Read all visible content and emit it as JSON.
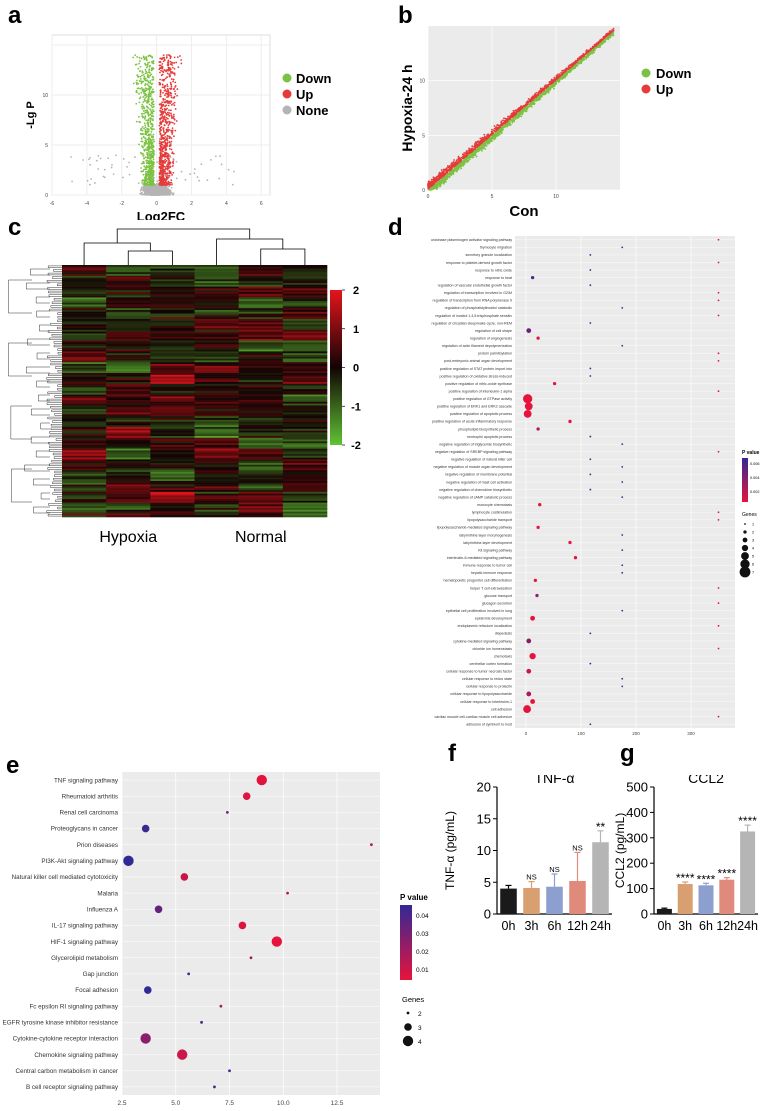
{
  "panels": {
    "a": "a",
    "b": "b",
    "c": "c",
    "d": "d",
    "e": "e",
    "f": "f",
    "g": "g"
  },
  "colors": {
    "down": "#7cc242",
    "up": "#e53b3b",
    "none": "#b4b4b4",
    "heat_low": "#5fc434",
    "heat_mid": "#120404",
    "heat_high": "#e4141c",
    "bar_0h": "#1a1a1a",
    "bar_3h": "#d8a070",
    "bar_6h": "#8d9fcf",
    "bar_12h": "#e08a7c",
    "bar_24h": "#b5b5b5",
    "grid_bg": "#ebebeb"
  },
  "chart_data": [
    {
      "id": "a",
      "type": "scatter",
      "title": "",
      "xlabel": "Log2FC",
      "ylabel": "-Lg P",
      "xlim": [
        -6,
        6.5
      ],
      "ylim": [
        0,
        16
      ],
      "xticks": [
        "-6",
        "-4",
        "-2",
        "0",
        "2",
        "4",
        "6"
      ],
      "yticks": [
        "0",
        "5",
        "10"
      ],
      "legend": [
        "Down",
        "Up",
        "None"
      ],
      "legend_position": "right"
    },
    {
      "id": "b",
      "type": "scatter",
      "title": "",
      "xlabel": "Con",
      "ylabel": "Hypoxia-24 h",
      "xlim": [
        0,
        15
      ],
      "ylim": [
        0,
        15
      ],
      "xticks": [
        "0",
        "5",
        "10"
      ],
      "yticks": [
        "0",
        "5",
        "10"
      ],
      "legend": [
        "Down",
        "Up"
      ],
      "legend_position": "right"
    },
    {
      "id": "c",
      "type": "heatmap",
      "groups": [
        "Hypoxia",
        "Normal"
      ],
      "columns": 6,
      "colorbar_ticks": [
        "2",
        "1",
        "0",
        "-1",
        "-2"
      ],
      "scale": [
        -2,
        2
      ]
    },
    {
      "id": "d",
      "type": "scatter",
      "subtype": "dotplot",
      "xticks": [
        "0",
        "100",
        "200",
        "300"
      ],
      "xlim": [
        -20,
        380
      ],
      "legend_pvalue_title": "P value",
      "legend_pvalue_ticks": [
        "0.006",
        "0.004",
        "0.002"
      ],
      "legend_genes_title": "Genes",
      "legend_genes_ticks": [
        "1",
        "2",
        "3",
        "4",
        "5",
        "6",
        "7"
      ],
      "terms": [
        {
          "label": "urokinase plasminogen activator signaling pathway",
          "x": 350,
          "genes": 1,
          "p": 0.001
        },
        {
          "label": "thymocyte migration",
          "x": 175,
          "genes": 1,
          "p": 0.006
        },
        {
          "label": "secretory granule localization",
          "x": 117,
          "genes": 1,
          "p": 0.006
        },
        {
          "label": "response to platelet-derived growth factor",
          "x": 350,
          "genes": 1,
          "p": 0.001
        },
        {
          "label": "response to nitric oxide",
          "x": 117,
          "genes": 1,
          "p": 0.006
        },
        {
          "label": "response to heat",
          "x": 12,
          "genes": 2,
          "p": 0.006
        },
        {
          "label": "regulation of vascular endothelial growth factor",
          "x": 117,
          "genes": 1,
          "p": 0.006
        },
        {
          "label": "regulation of transcription involved in G2/M",
          "x": 350,
          "genes": 1,
          "p": 0.001
        },
        {
          "label": "regulation of transcription from RNA polymerase II",
          "x": 350,
          "genes": 1,
          "p": 0.001
        },
        {
          "label": "regulation of phosphatidylinositol catabolic",
          "x": 175,
          "genes": 1,
          "p": 0.006
        },
        {
          "label": "regulation of inositol 1,4,5-trisphosphate sensitiv",
          "x": 350,
          "genes": 1,
          "p": 0.001
        },
        {
          "label": "regulation of circadian sleep/wake cycle, non-REM",
          "x": 117,
          "genes": 1,
          "p": 0.006
        },
        {
          "label": "regulation of cell shape",
          "x": 5,
          "genes": 3,
          "p": 0.005
        },
        {
          "label": "regulation of angiogenesis",
          "x": 22,
          "genes": 2,
          "p": 0.001
        },
        {
          "label": "regulation of actin filament depolymerization",
          "x": 175,
          "genes": 1,
          "p": 0.006
        },
        {
          "label": "protein palmitoylation",
          "x": 350,
          "genes": 1,
          "p": 0.001
        },
        {
          "label": "post-embryonic animal organ development",
          "x": 350,
          "genes": 1,
          "p": 0.001
        },
        {
          "label": "positive regulation of STAT protein import into",
          "x": 117,
          "genes": 1,
          "p": 0.006
        },
        {
          "label": "positive regulation of oxidative stress-induced",
          "x": 117,
          "genes": 1,
          "p": 0.006
        },
        {
          "label": "positive regulation of nitric-oxide synthase",
          "x": 52,
          "genes": 2,
          "p": 0.001
        },
        {
          "label": "positive regulation of interleukin-1 alpha",
          "x": 350,
          "genes": 1,
          "p": 0.001
        },
        {
          "label": "positive regulation of GTPase activity",
          "x": 3,
          "genes": 6,
          "p": 0.001
        },
        {
          "label": "positive regulation of ERK1 and ERK2 cascade",
          "x": 5,
          "genes": 5,
          "p": 0.001
        },
        {
          "label": "positive regulation of apoptotic process",
          "x": 3,
          "genes": 5,
          "p": 0.001
        },
        {
          "label": "positive regulation of acute inflammatory response",
          "x": 80,
          "genes": 2,
          "p": 0.001
        },
        {
          "label": "phospholipid biosynthetic process",
          "x": 22,
          "genes": 2,
          "p": 0.003
        },
        {
          "label": "neutrophil apoptotic process",
          "x": 117,
          "genes": 1,
          "p": 0.006
        },
        {
          "label": "negative regulation of triglyceride biosynthetic",
          "x": 175,
          "genes": 1,
          "p": 0.006
        },
        {
          "label": "negative regulation of SREBP signaling pathway",
          "x": 350,
          "genes": 1,
          "p": 0.001
        },
        {
          "label": "negative regulation of natural killer cell",
          "x": 117,
          "genes": 1,
          "p": 0.006
        },
        {
          "label": "negative regulation of muscle organ development",
          "x": 175,
          "genes": 1,
          "p": 0.006
        },
        {
          "label": "negative regulation of membrane potential",
          "x": 117,
          "genes": 1,
          "p": 0.006
        },
        {
          "label": "negative regulation of mast cell activation",
          "x": 175,
          "genes": 1,
          "p": 0.006
        },
        {
          "label": "negative regulation of chemokine biosynthetic",
          "x": 117,
          "genes": 1,
          "p": 0.006
        },
        {
          "label": "negative regulation of cAMP catabolic process",
          "x": 175,
          "genes": 1,
          "p": 0.006
        },
        {
          "label": "monocyte chemotaxis",
          "x": 25,
          "genes": 2,
          "p": 0.001
        },
        {
          "label": "lymphocyte costimulation",
          "x": 350,
          "genes": 1,
          "p": 0.001
        },
        {
          "label": "lipopolysaccharide transport",
          "x": 350,
          "genes": 1,
          "p": 0.001
        },
        {
          "label": "lipopolysaccharide-mediated signaling pathway",
          "x": 22,
          "genes": 2,
          "p": 0.001
        },
        {
          "label": "labyrinthine layer morphogenesis",
          "x": 175,
          "genes": 1,
          "p": 0.006
        },
        {
          "label": "labyrinthine layer development",
          "x": 80,
          "genes": 2,
          "p": 0.001
        },
        {
          "label": "Kit signaling pathway",
          "x": 175,
          "genes": 1,
          "p": 0.006
        },
        {
          "label": "interleukin-6-mediated signaling pathway",
          "x": 90,
          "genes": 2,
          "p": 0.001
        },
        {
          "label": "immune response to tumor cell",
          "x": 175,
          "genes": 1,
          "p": 0.006
        },
        {
          "label": "hepatic immune response",
          "x": 175,
          "genes": 1,
          "p": 0.006
        },
        {
          "label": "hematopoietic progenitor cell differentiation",
          "x": 17,
          "genes": 2,
          "p": 0.001
        },
        {
          "label": "helper T cell extravasation",
          "x": 350,
          "genes": 1,
          "p": 0.001
        },
        {
          "label": "glucose transport",
          "x": 20,
          "genes": 2,
          "p": 0.004
        },
        {
          "label": "glucagon secretion",
          "x": 350,
          "genes": 1,
          "p": 0.001
        },
        {
          "label": "epithelial cell proliferation involved in lung",
          "x": 175,
          "genes": 1,
          "p": 0.006
        },
        {
          "label": "epidermis development",
          "x": 12,
          "genes": 3,
          "p": 0.001
        },
        {
          "label": "endoplasmic reticulum localization",
          "x": 350,
          "genes": 1,
          "p": 0.001
        },
        {
          "label": "diapedesis",
          "x": 117,
          "genes": 1,
          "p": 0.007
        },
        {
          "label": "cytokine-mediated signaling pathway",
          "x": 5,
          "genes": 3,
          "p": 0.004
        },
        {
          "label": "chloride ion homeostasis",
          "x": 350,
          "genes": 1,
          "p": 0.001
        },
        {
          "label": "chemotaxis",
          "x": 12,
          "genes": 4,
          "p": 0.001
        },
        {
          "label": "cerebellar cortex formation",
          "x": 117,
          "genes": 1,
          "p": 0.007
        },
        {
          "label": "cellular response to tumor necrosis factor",
          "x": 5,
          "genes": 3,
          "p": 0.002
        },
        {
          "label": "cellular response to redox state",
          "x": 175,
          "genes": 1,
          "p": 0.006
        },
        {
          "label": "cellular response to prolactin",
          "x": 175,
          "genes": 1,
          "p": 0.006
        },
        {
          "label": "cellular response to lipopolysaccharide",
          "x": 5,
          "genes": 3,
          "p": 0.003
        },
        {
          "label": "cellular response to interleukin-1",
          "x": 12,
          "genes": 3,
          "p": 0.001
        },
        {
          "label": "cell adhesion",
          "x": 2,
          "genes": 5,
          "p": 0.001
        },
        {
          "label": "cardiac muscle cell-cardiac muscle cell adhesion",
          "x": 350,
          "genes": 1,
          "p": 0.001
        },
        {
          "label": "adhesion of symbiont to host",
          "x": 117,
          "genes": 1,
          "p": 0.006
        }
      ]
    },
    {
      "id": "e",
      "type": "scatter",
      "subtype": "dotplot",
      "xticks": [
        "2.5",
        "5.0",
        "7.5",
        "10.0",
        "12.5"
      ],
      "xlim": [
        2.5,
        14.5
      ],
      "legend_pvalue_title": "P value",
      "legend_pvalue_ticks": [
        "0.04",
        "0.03",
        "0.02",
        "0.01"
      ],
      "legend_genes_title": "Genes",
      "legend_genes_ticks": [
        "2",
        "3",
        "4"
      ],
      "terms": [
        {
          "label": "TNF signaling pathway",
          "x": 9.0,
          "genes": 4,
          "p": 0.002
        },
        {
          "label": "Rheumatoid arthritis",
          "x": 8.3,
          "genes": 3,
          "p": 0.003
        },
        {
          "label": "Renal cell carcinoma",
          "x": 7.4,
          "genes": 2,
          "p": 0.03
        },
        {
          "label": "Proteoglycans in cancer",
          "x": 3.6,
          "genes": 3,
          "p": 0.045
        },
        {
          "label": "Prion diseases",
          "x": 14.1,
          "genes": 2,
          "p": 0.01
        },
        {
          "label": "PI3K-Akt signaling pathway",
          "x": 2.8,
          "genes": 4,
          "p": 0.048
        },
        {
          "label": "Natural killer cell mediated cytotoxicity",
          "x": 5.4,
          "genes": 3,
          "p": 0.01
        },
        {
          "label": "Malaria",
          "x": 10.2,
          "genes": 2,
          "p": 0.015
        },
        {
          "label": "Influenza A",
          "x": 4.2,
          "genes": 3,
          "p": 0.035
        },
        {
          "label": "IL-17 signaling pathway",
          "x": 8.1,
          "genes": 3,
          "p": 0.004
        },
        {
          "label": "HIF-1 signaling pathway",
          "x": 9.7,
          "genes": 4,
          "p": 0.001
        },
        {
          "label": "Glycerolipid metabolism",
          "x": 8.5,
          "genes": 2,
          "p": 0.02
        },
        {
          "label": "Gap junction",
          "x": 5.6,
          "genes": 2,
          "p": 0.045
        },
        {
          "label": "Focal adhesion",
          "x": 3.7,
          "genes": 3,
          "p": 0.048
        },
        {
          "label": "Fc epsilon RI signaling pathway",
          "x": 7.1,
          "genes": 2,
          "p": 0.02
        },
        {
          "label": "EGFR tyrosine kinase inhibitor resistance",
          "x": 6.2,
          "genes": 2,
          "p": 0.04
        },
        {
          "label": "Cytokine-cytokine receptor interaction",
          "x": 3.6,
          "genes": 4,
          "p": 0.025
        },
        {
          "label": "Chemokine signaling pathway",
          "x": 5.3,
          "genes": 4,
          "p": 0.008
        },
        {
          "label": "Central carbon metabolism in cancer",
          "x": 7.5,
          "genes": 2,
          "p": 0.04
        },
        {
          "label": "B cell receptor signaling pathway",
          "x": 6.8,
          "genes": 2,
          "p": 0.04
        }
      ]
    },
    {
      "id": "f",
      "type": "bar",
      "title": "TNF-α",
      "ylabel": "TNF-α (pg/mL)",
      "ylim": [
        0,
        20
      ],
      "yticks": [
        "0",
        "5",
        "10",
        "15",
        "20"
      ],
      "categories": [
        "0h",
        "3h",
        "6h",
        "12h",
        "24h"
      ],
      "values": [
        4.0,
        4.1,
        4.3,
        5.2,
        11.3
      ],
      "errors": [
        0.5,
        1.0,
        2.0,
        4.5,
        1.8
      ],
      "annotations": [
        "",
        "NS",
        "NS",
        "NS",
        "**"
      ]
    },
    {
      "id": "g",
      "type": "bar",
      "title": "CCL2",
      "ylabel": "CCL2 (pg/mL)",
      "ylim": [
        0,
        500
      ],
      "yticks": [
        "0",
        "100",
        "200",
        "300",
        "400",
        "500"
      ],
      "categories": [
        "0h",
        "3h",
        "6h",
        "12h",
        "24h"
      ],
      "values": [
        20,
        118,
        113,
        135,
        325
      ],
      "errors": [
        3,
        8,
        8,
        8,
        25
      ],
      "annotations": [
        "",
        "****",
        "****",
        "****",
        "****"
      ]
    }
  ]
}
